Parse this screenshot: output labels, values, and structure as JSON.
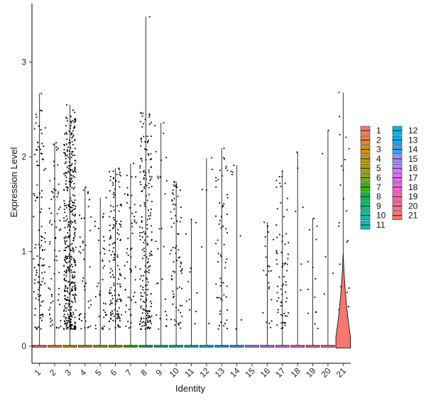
{
  "chart_data": {
    "type": "violin",
    "xlabel": "Identity",
    "ylabel": "Expression Level",
    "ylim": [
      -0.18,
      3.62
    ],
    "yticks": [
      0,
      1,
      2,
      3
    ],
    "categories": [
      "1",
      "2",
      "3",
      "4",
      "5",
      "6",
      "7",
      "8",
      "9",
      "10",
      "11",
      "12",
      "13",
      "14",
      "15",
      "16",
      "17",
      "18",
      "19",
      "20",
      "21"
    ],
    "series_colors": [
      "#F8766D",
      "#EA8331",
      "#D89000",
      "#C09B00",
      "#A3A500",
      "#7CAE00",
      "#39B600",
      "#00BB4E",
      "#00BF7D",
      "#00C1A3",
      "#00BFC4",
      "#00BAE0",
      "#00B0F6",
      "#35A2FF",
      "#9590FF",
      "#C77CFF",
      "#E76BF3",
      "#FA62DB",
      "#FF62BC",
      "#FF6A98",
      "#F8766D"
    ],
    "max_values": [
      2.67,
      2.15,
      2.55,
      1.68,
      1.57,
      1.88,
      1.93,
      3.48,
      2.36,
      1.74,
      1.34,
      1.99,
      2.09,
      1.91,
      0.0,
      1.31,
      1.85,
      2.05,
      1.35,
      2.28,
      2.68
    ],
    "point_counts": [
      110,
      70,
      420,
      45,
      40,
      150,
      55,
      210,
      28,
      75,
      12,
      6,
      60,
      7,
      0,
      22,
      70,
      6,
      14,
      5,
      25
    ],
    "legend": {
      "title": "",
      "placement": "right",
      "columns": 2,
      "entries": [
        "1",
        "2",
        "3",
        "4",
        "5",
        "6",
        "7",
        "8",
        "9",
        "10",
        "11",
        "12",
        "13",
        "14",
        "15",
        "16",
        "17",
        "18",
        "19",
        "20",
        "21"
      ]
    }
  }
}
